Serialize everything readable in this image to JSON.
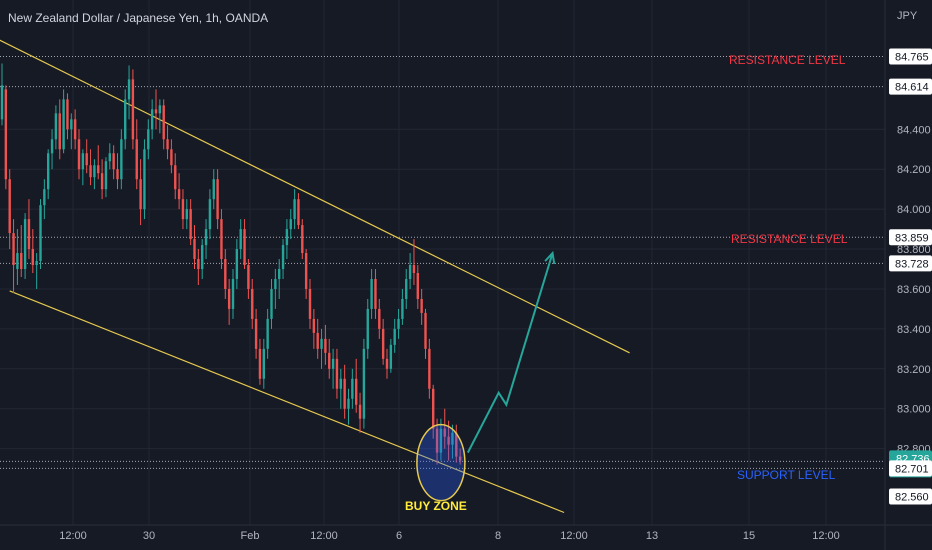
{
  "chart_data": {
    "type": "candlestick",
    "title": "New Zealand Dollar / Japanese Yen, 1h, OANDA",
    "currency": "JPY",
    "ylim": [
      82.48,
      84.86
    ],
    "y_ticks": [
      "83.600",
      "83.400",
      "83.200",
      "83.000",
      "82.800",
      "84.400",
      "84.200",
      "84.000",
      "83.800"
    ],
    "x_ticks": [
      "12:00",
      "30",
      "Feb",
      "12:00",
      "6",
      "8",
      "12:00",
      "13",
      "15",
      "12:00"
    ],
    "price_tags": [
      {
        "label": "84.765",
        "value": 84.765,
        "style": "plain"
      },
      {
        "label": "84.614",
        "value": 84.614,
        "style": "plain"
      },
      {
        "label": "83.859",
        "value": 83.859,
        "style": "plain"
      },
      {
        "label": "83.728",
        "value": 83.728,
        "style": "plain"
      },
      {
        "label": "82.736",
        "sublabel": "49:44",
        "value": 82.736,
        "style": "current"
      },
      {
        "label": "82.701",
        "value": 82.701,
        "style": "plain"
      },
      {
        "label": "82.560",
        "value": 82.56,
        "style": "plain"
      }
    ],
    "horizontal_levels": [
      84.765,
      84.614,
      83.859,
      83.728,
      82.736,
      82.701
    ],
    "annotations": [
      {
        "text": "RESISTANCE LEVEL",
        "color": "#f23645"
      },
      {
        "text": "RESISTANCE LEVEL",
        "color": "#f23645"
      },
      {
        "text": "SUPPORT LEVEL",
        "color": "#2962ff"
      },
      {
        "text": "BUY ZONE",
        "color": "#ffeb3b"
      }
    ],
    "channel": {
      "upper": [
        {
          "t": -2,
          "p": 84.86
        },
        {
          "t": 163,
          "p": 83.28
        }
      ],
      "lower": [
        {
          "t": 2,
          "p": 83.59
        },
        {
          "t": 146,
          "p": 82.48
        }
      ]
    },
    "projection": [
      {
        "t": 121,
        "p": 82.78
      },
      {
        "t": 129,
        "p": 83.08
      },
      {
        "t": 131,
        "p": 83.02
      },
      {
        "t": 143,
        "p": 83.78
      }
    ],
    "candles": [
      [
        84.45,
        84.73,
        84.42,
        84.62
      ],
      [
        84.6,
        84.62,
        84.1,
        84.15
      ],
      [
        84.15,
        84.2,
        83.8,
        83.88
      ],
      [
        83.88,
        83.95,
        83.58,
        83.72
      ],
      [
        83.7,
        83.9,
        83.62,
        83.78
      ],
      [
        83.78,
        83.92,
        83.66,
        83.7
      ],
      [
        83.7,
        83.98,
        83.65,
        83.95
      ],
      [
        83.95,
        84.05,
        83.75,
        83.8
      ],
      [
        83.8,
        83.9,
        83.68,
        83.72
      ],
      [
        83.72,
        83.78,
        83.6,
        83.74
      ],
      [
        83.74,
        84.05,
        83.7,
        84.02
      ],
      [
        84.02,
        84.15,
        83.95,
        84.1
      ],
      [
        84.1,
        84.3,
        84.05,
        84.28
      ],
      [
        84.28,
        84.4,
        84.2,
        84.35
      ],
      [
        84.35,
        84.52,
        84.3,
        84.48
      ],
      [
        84.48,
        84.55,
        84.25,
        84.3
      ],
      [
        84.3,
        84.6,
        84.28,
        84.55
      ],
      [
        84.55,
        84.58,
        84.35,
        84.4
      ],
      [
        84.4,
        84.48,
        84.3,
        84.45
      ],
      [
        84.45,
        84.5,
        84.3,
        84.35
      ],
      [
        84.35,
        84.4,
        84.15,
        84.2
      ],
      [
        84.2,
        84.3,
        84.12,
        84.28
      ],
      [
        84.28,
        84.35,
        84.18,
        84.22
      ],
      [
        84.22,
        84.3,
        84.12,
        84.16
      ],
      [
        84.16,
        84.25,
        84.1,
        84.22
      ],
      [
        84.22,
        84.32,
        84.15,
        84.18
      ],
      [
        84.18,
        84.25,
        84.05,
        84.1
      ],
      [
        84.1,
        84.26,
        84.06,
        84.24
      ],
      [
        84.24,
        84.33,
        84.2,
        84.28
      ],
      [
        84.28,
        84.32,
        84.15,
        84.2
      ],
      [
        84.2,
        84.28,
        84.1,
        84.15
      ],
      [
        84.15,
        84.4,
        84.1,
        84.35
      ],
      [
        84.35,
        84.6,
        84.3,
        84.55
      ],
      [
        84.55,
        84.72,
        84.45,
        84.65
      ],
      [
        84.65,
        84.7,
        84.3,
        84.35
      ],
      [
        84.35,
        84.45,
        84.1,
        84.15
      ],
      [
        84.15,
        84.25,
        83.92,
        84.0
      ],
      [
        84.0,
        84.35,
        83.95,
        84.3
      ],
      [
        84.3,
        84.45,
        84.25,
        84.4
      ],
      [
        84.4,
        84.55,
        84.35,
        84.5
      ],
      [
        84.5,
        84.6,
        84.4,
        84.48
      ],
      [
        84.48,
        84.55,
        84.38,
        84.52
      ],
      [
        84.52,
        84.55,
        84.3,
        84.35
      ],
      [
        84.35,
        84.42,
        84.25,
        84.3
      ],
      [
        84.3,
        84.35,
        84.18,
        84.22
      ],
      [
        84.22,
        84.28,
        84.05,
        84.1
      ],
      [
        84.1,
        84.18,
        84.0,
        84.05
      ],
      [
        84.05,
        84.1,
        83.9,
        83.95
      ],
      [
        83.95,
        84.05,
        83.9,
        84.0
      ],
      [
        84.0,
        84.05,
        83.82,
        83.85
      ],
      [
        83.85,
        83.92,
        83.7,
        83.75
      ],
      [
        83.75,
        83.8,
        83.62,
        83.7
      ],
      [
        83.7,
        83.85,
        83.65,
        83.82
      ],
      [
        83.82,
        83.95,
        83.75,
        83.9
      ],
      [
        83.9,
        84.1,
        83.85,
        84.05
      ],
      [
        84.05,
        84.2,
        84.0,
        84.15
      ],
      [
        84.15,
        84.2,
        83.9,
        83.95
      ],
      [
        83.95,
        84.0,
        83.7,
        83.75
      ],
      [
        83.75,
        83.8,
        83.55,
        83.6
      ],
      [
        83.6,
        83.65,
        83.42,
        83.5
      ],
      [
        83.5,
        83.7,
        83.45,
        83.65
      ],
      [
        83.65,
        83.85,
        83.6,
        83.8
      ],
      [
        83.8,
        83.95,
        83.75,
        83.9
      ],
      [
        83.9,
        83.95,
        83.7,
        83.72
      ],
      [
        83.72,
        83.75,
        83.55,
        83.6
      ],
      [
        83.6,
        83.65,
        83.4,
        83.45
      ],
      [
        83.45,
        83.5,
        83.25,
        83.3
      ],
      [
        83.3,
        83.35,
        83.12,
        83.15
      ],
      [
        83.15,
        83.35,
        83.1,
        83.3
      ],
      [
        83.3,
        83.5,
        83.25,
        83.45
      ],
      [
        83.45,
        83.65,
        83.4,
        83.6
      ],
      [
        83.6,
        83.7,
        83.5,
        83.65
      ],
      [
        83.65,
        83.75,
        83.55,
        83.7
      ],
      [
        83.7,
        83.85,
        83.65,
        83.82
      ],
      [
        83.82,
        83.95,
        83.75,
        83.9
      ],
      [
        83.9,
        84.0,
        83.85,
        83.95
      ],
      [
        83.95,
        84.1,
        83.9,
        84.05
      ],
      [
        84.05,
        84.08,
        83.9,
        83.92
      ],
      [
        83.92,
        83.95,
        83.75,
        83.78
      ],
      [
        83.78,
        83.8,
        83.55,
        83.6
      ],
      [
        83.6,
        83.65,
        83.4,
        83.45
      ],
      [
        83.45,
        83.5,
        83.3,
        83.38
      ],
      [
        83.38,
        83.45,
        83.25,
        83.3
      ],
      [
        83.3,
        83.4,
        83.2,
        83.35
      ],
      [
        83.35,
        83.42,
        83.22,
        83.28
      ],
      [
        83.28,
        83.35,
        83.15,
        83.2
      ],
      [
        83.2,
        83.3,
        83.1,
        83.25
      ],
      [
        83.25,
        83.3,
        83.05,
        83.1
      ],
      [
        83.1,
        83.2,
        83.0,
        83.15
      ],
      [
        83.15,
        83.22,
        82.95,
        83.0
      ],
      [
        83.0,
        83.1,
        82.92,
        83.05
      ],
      [
        83.05,
        83.2,
        83.0,
        83.15
      ],
      [
        83.15,
        83.25,
        82.98,
        83.02
      ],
      [
        83.02,
        83.08,
        82.88,
        82.95
      ],
      [
        82.95,
        83.35,
        82.9,
        83.3
      ],
      [
        83.3,
        83.55,
        83.25,
        83.5
      ],
      [
        83.5,
        83.7,
        83.45,
        83.65
      ],
      [
        83.65,
        83.7,
        83.45,
        83.5
      ],
      [
        83.5,
        83.55,
        83.35,
        83.4
      ],
      [
        83.4,
        83.45,
        83.22,
        83.25
      ],
      [
        83.25,
        83.3,
        83.15,
        83.2
      ],
      [
        83.2,
        83.35,
        83.18,
        83.32
      ],
      [
        83.32,
        83.45,
        83.28,
        83.4
      ],
      [
        83.4,
        83.5,
        83.35,
        83.45
      ],
      [
        83.45,
        83.6,
        83.42,
        83.55
      ],
      [
        83.55,
        83.7,
        83.5,
        83.65
      ],
      [
        83.65,
        83.78,
        83.6,
        83.72
      ],
      [
        83.72,
        83.85,
        83.62,
        83.68
      ],
      [
        83.68,
        83.72,
        83.5,
        83.55
      ],
      [
        83.55,
        83.6,
        83.42,
        83.48
      ],
      [
        83.48,
        83.5,
        83.25,
        83.3
      ],
      [
        83.3,
        83.35,
        83.05,
        83.1
      ],
      [
        83.1,
        83.12,
        82.85,
        82.9
      ],
      [
        82.9,
        82.95,
        82.72,
        82.78
      ],
      [
        82.78,
        82.95,
        82.74,
        82.9
      ],
      [
        82.9,
        83.0,
        82.8,
        82.86
      ],
      [
        82.86,
        82.94,
        82.74,
        82.82
      ],
      [
        82.82,
        82.92,
        82.75,
        82.88
      ],
      [
        82.88,
        82.92,
        82.73,
        82.76
      ],
      [
        82.76,
        82.8,
        82.72,
        82.74
      ]
    ]
  }
}
